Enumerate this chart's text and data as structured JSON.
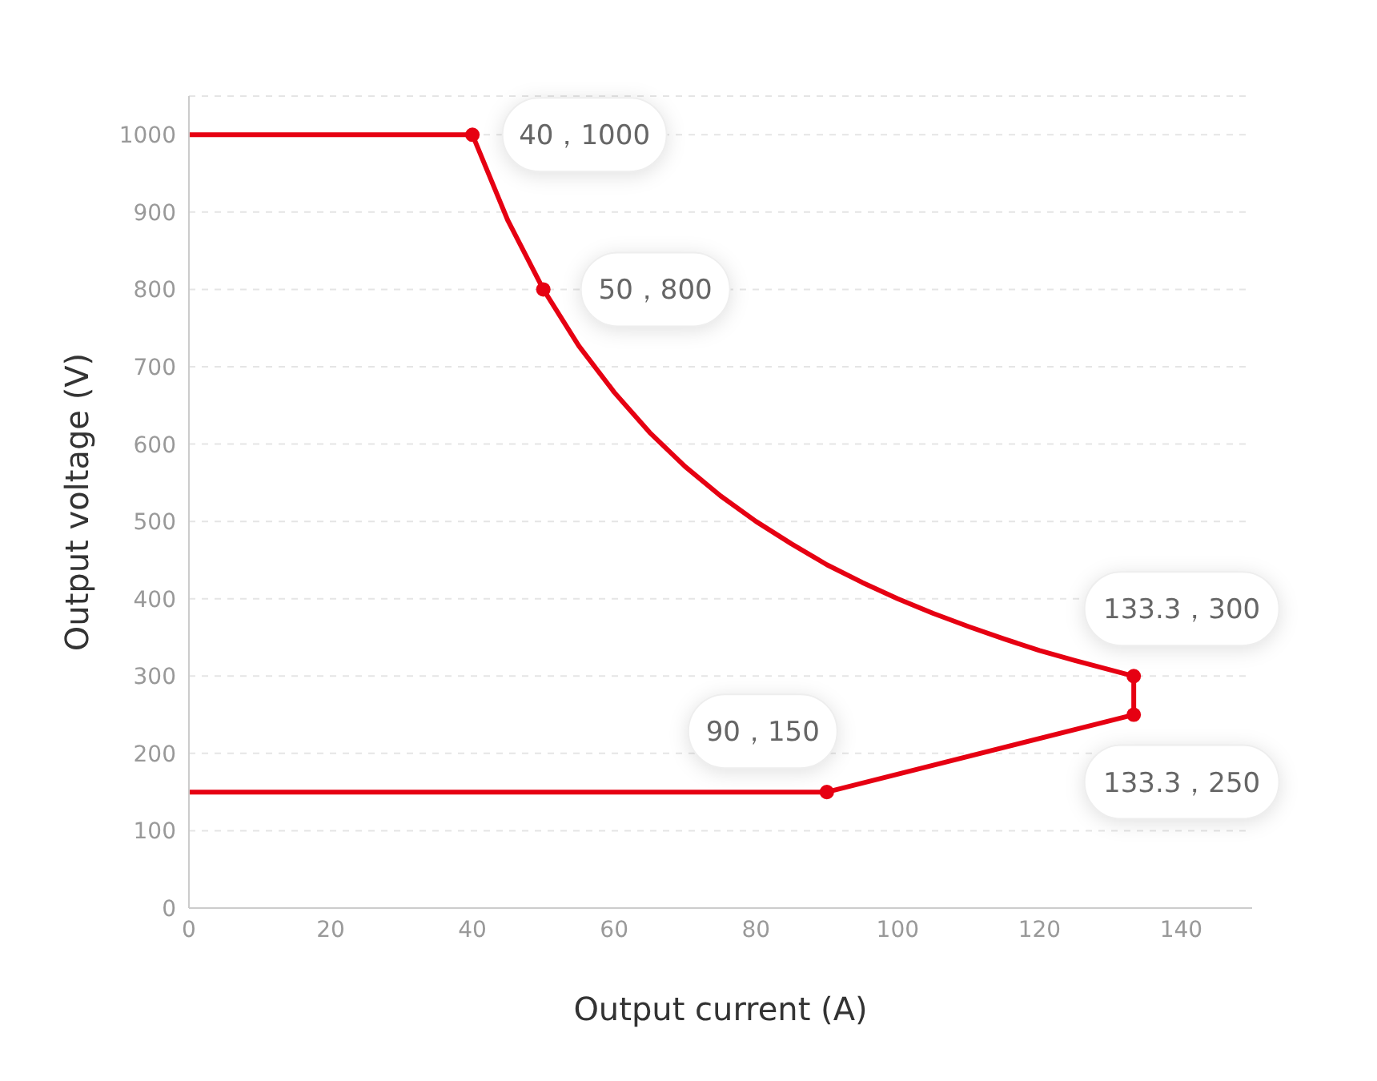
{
  "chart_data": {
    "type": "line",
    "xlabel": "Output current (A)",
    "ylabel": "Output voltage (V)",
    "xlim": [
      0,
      150
    ],
    "xticks": [
      0,
      20,
      40,
      60,
      80,
      100,
      120,
      140
    ],
    "ylim": [
      0,
      1050
    ],
    "yticks": [
      0,
      100,
      200,
      300,
      400,
      500,
      600,
      700,
      800,
      900,
      1000
    ],
    "grid": "y",
    "series": [
      {
        "color": "#e60012",
        "marker": "none",
        "x": [
          0,
          40,
          45,
          50,
          55,
          60,
          65,
          70,
          75,
          80,
          85,
          90,
          95,
          100,
          105,
          110,
          115,
          120,
          125,
          133.3,
          133.3,
          90,
          0
        ],
        "values": [
          1000,
          1000,
          889,
          800,
          727,
          667,
          615,
          571,
          533,
          500,
          471,
          444,
          421,
          400,
          381,
          364,
          348,
          333,
          320,
          300,
          250,
          150,
          150
        ]
      },
      {
        "type": "scatter",
        "color": "#e60012",
        "marker": "circle",
        "x": [
          40,
          50,
          133.3,
          133.3,
          90
        ],
        "values": [
          1000,
          800,
          300,
          250,
          150
        ]
      }
    ],
    "annotations": [
      {
        "text": "40，1000",
        "x": 40,
        "y": 1000
      },
      {
        "text": "50，800",
        "x": 50,
        "y": 800
      },
      {
        "text": "133.3，300",
        "x": 133.3,
        "y": 300
      },
      {
        "text": "133.3，250",
        "x": 133.3,
        "y": 250
      },
      {
        "text": "90，150",
        "x": 90,
        "y": 150
      }
    ]
  }
}
